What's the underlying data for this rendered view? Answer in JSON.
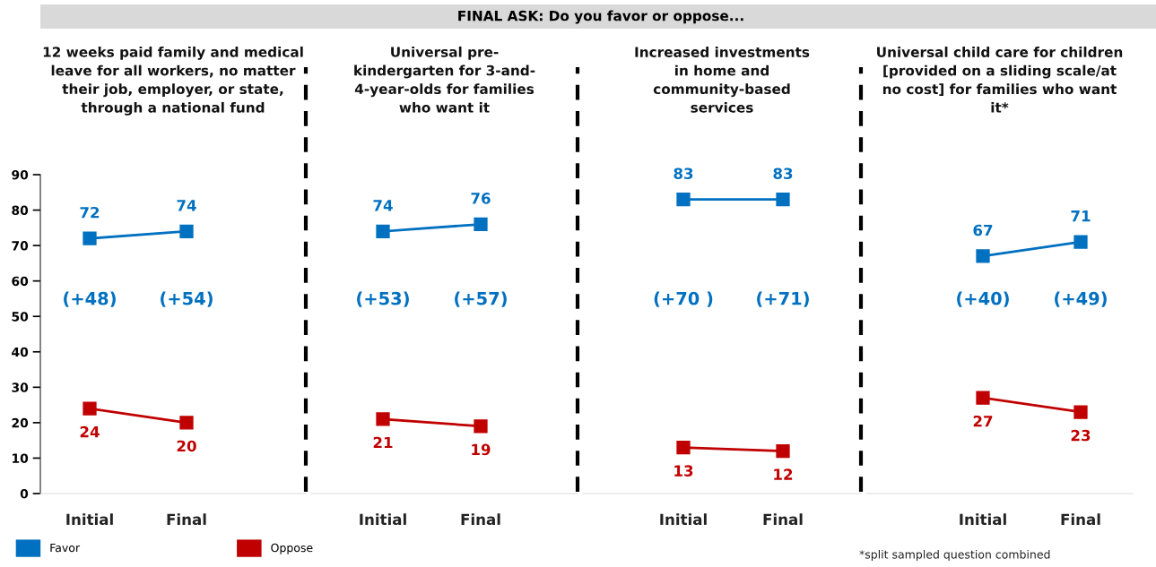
{
  "chart_data": [
    {
      "type": "line",
      "title": "12 weeks paid family and medical\nleave for all workers, no matter\ntheir job, employer, or state,\nthrough a national fund",
      "categories": [
        "Initial",
        "Final"
      ],
      "series": [
        {
          "name": "Favor",
          "color": "#0070c0",
          "values": [
            72,
            74
          ]
        },
        {
          "name": "Oppose",
          "color": "#c00000",
          "values": [
            24,
            20
          ]
        }
      ],
      "ylim": [
        0,
        90
      ],
      "yticks": [
        0,
        10,
        20,
        30,
        40,
        50,
        60,
        70,
        80,
        90
      ],
      "marker": "square",
      "data_labels": true,
      "grid": false,
      "legend": "bottom left",
      "annotations": [
        "FINAL ASK: Do you favor or oppose...",
        "(+48)",
        "(+54)"
      ]
    },
    {
      "type": "line",
      "title": "Universal pre-\nkindergarten for 3-and-\n4-year-olds for families\nwho want it",
      "categories": [
        "Initial",
        "Final"
      ],
      "series": [
        {
          "color": "#0070c0",
          "values": [
            74,
            76
          ]
        },
        {
          "color": "#c00000",
          "values": [
            21,
            19
          ]
        }
      ],
      "ylim": [
        0,
        90
      ],
      "tick_labels": "x",
      "marker": "square",
      "data_labels": true,
      "grid": false,
      "annotations": [
        "(+53)",
        "(+57)"
      ]
    },
    {
      "type": "line",
      "title": "Increased investments\nin home and\ncommunity-based\nservices",
      "categories": [
        "Initial",
        "Final"
      ],
      "series": [
        {
          "color": "#0070c0",
          "values": [
            83,
            83
          ]
        },
        {
          "color": "#c00000",
          "values": [
            13,
            12
          ]
        }
      ],
      "ylim": [
        0,
        90
      ],
      "tick_labels": "x",
      "marker": "square",
      "data_labels": true,
      "grid": false,
      "annotations": [
        "(+70 )",
        "(+71)"
      ]
    },
    {
      "type": "line",
      "title": "Universal child care for children\n[provided on a sliding scale/at\nno cost] for families who want\nit*",
      "categories": [
        "Initial",
        "Final"
      ],
      "series": [
        {
          "color": "#0070c0",
          "values": [
            67,
            71
          ]
        },
        {
          "color": "#c00000",
          "values": [
            27,
            23
          ]
        }
      ],
      "ylim": [
        0,
        90
      ],
      "tick_labels": "x",
      "marker": "square",
      "data_labels": true,
      "grid": false,
      "annotations": [
        "(+40)",
        "(+49)",
        "*split sampled question combined"
      ]
    }
  ]
}
